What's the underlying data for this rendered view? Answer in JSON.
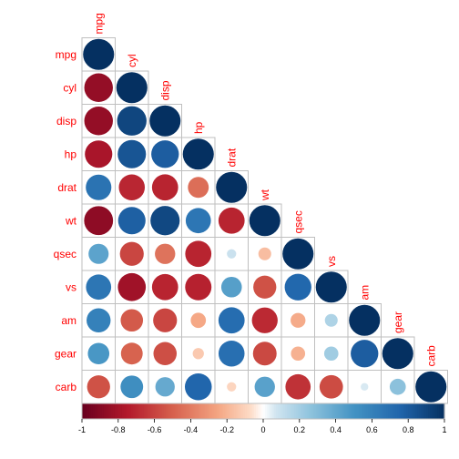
{
  "chart_data": {
    "type": "heatmap",
    "style": "correlation-plot-circles-lower-triangle",
    "variables": [
      "mpg",
      "cyl",
      "disp",
      "hp",
      "drat",
      "wt",
      "qsec",
      "vs",
      "am",
      "gear",
      "carb"
    ],
    "matrix": [
      [
        1.0,
        -0.85,
        -0.85,
        -0.78,
        0.68,
        -0.87,
        0.42,
        0.66,
        0.6,
        0.48,
        -0.55
      ],
      [
        -0.85,
        1.0,
        0.9,
        0.83,
        -0.7,
        0.78,
        -0.59,
        -0.81,
        -0.52,
        -0.49,
        0.53
      ],
      [
        -0.85,
        0.9,
        1.0,
        0.79,
        -0.71,
        0.89,
        -0.43,
        -0.71,
        -0.59,
        -0.56,
        0.39
      ],
      [
        -0.78,
        0.83,
        0.79,
        1.0,
        -0.45,
        0.66,
        -0.71,
        -0.72,
        -0.24,
        -0.13,
        0.75
      ],
      [
        0.68,
        -0.7,
        -0.71,
        -0.45,
        1.0,
        -0.71,
        0.09,
        0.44,
        0.71,
        0.7,
        -0.09
      ],
      [
        -0.87,
        0.78,
        0.89,
        0.66,
        -0.71,
        1.0,
        -0.17,
        -0.55,
        -0.69,
        -0.58,
        0.43
      ],
      [
        0.42,
        -0.59,
        -0.43,
        -0.71,
        0.09,
        -0.17,
        1.0,
        0.74,
        -0.23,
        -0.21,
        -0.66
      ],
      [
        0.66,
        -0.81,
        -0.71,
        -0.72,
        0.44,
        -0.55,
        0.74,
        1.0,
        0.17,
        0.21,
        -0.57
      ],
      [
        0.6,
        -0.52,
        -0.59,
        -0.24,
        0.71,
        -0.69,
        -0.23,
        0.17,
        1.0,
        0.79,
        0.06
      ],
      [
        0.48,
        -0.49,
        -0.56,
        -0.13,
        0.7,
        -0.58,
        -0.21,
        0.21,
        0.79,
        1.0,
        0.27
      ],
      [
        -0.55,
        0.53,
        0.39,
        0.75,
        -0.09,
        0.43,
        -0.66,
        -0.57,
        0.06,
        0.27,
        1.0
      ]
    ],
    "colorbar": {
      "range": [
        -1,
        1
      ],
      "ticks": [
        "-1",
        "-0.8",
        "-0.6",
        "-0.4",
        "-0.2",
        "0",
        "0.2",
        "0.4",
        "0.6",
        "0.8",
        "1"
      ],
      "orientation": "horizontal",
      "placement": "bottom"
    },
    "colors": {
      "negative_end": "#67001f",
      "neutral": "#ffffff",
      "positive_end": "#053061",
      "label_color": "#ff0000"
    },
    "title": "",
    "xlabel": "",
    "ylabel": ""
  }
}
